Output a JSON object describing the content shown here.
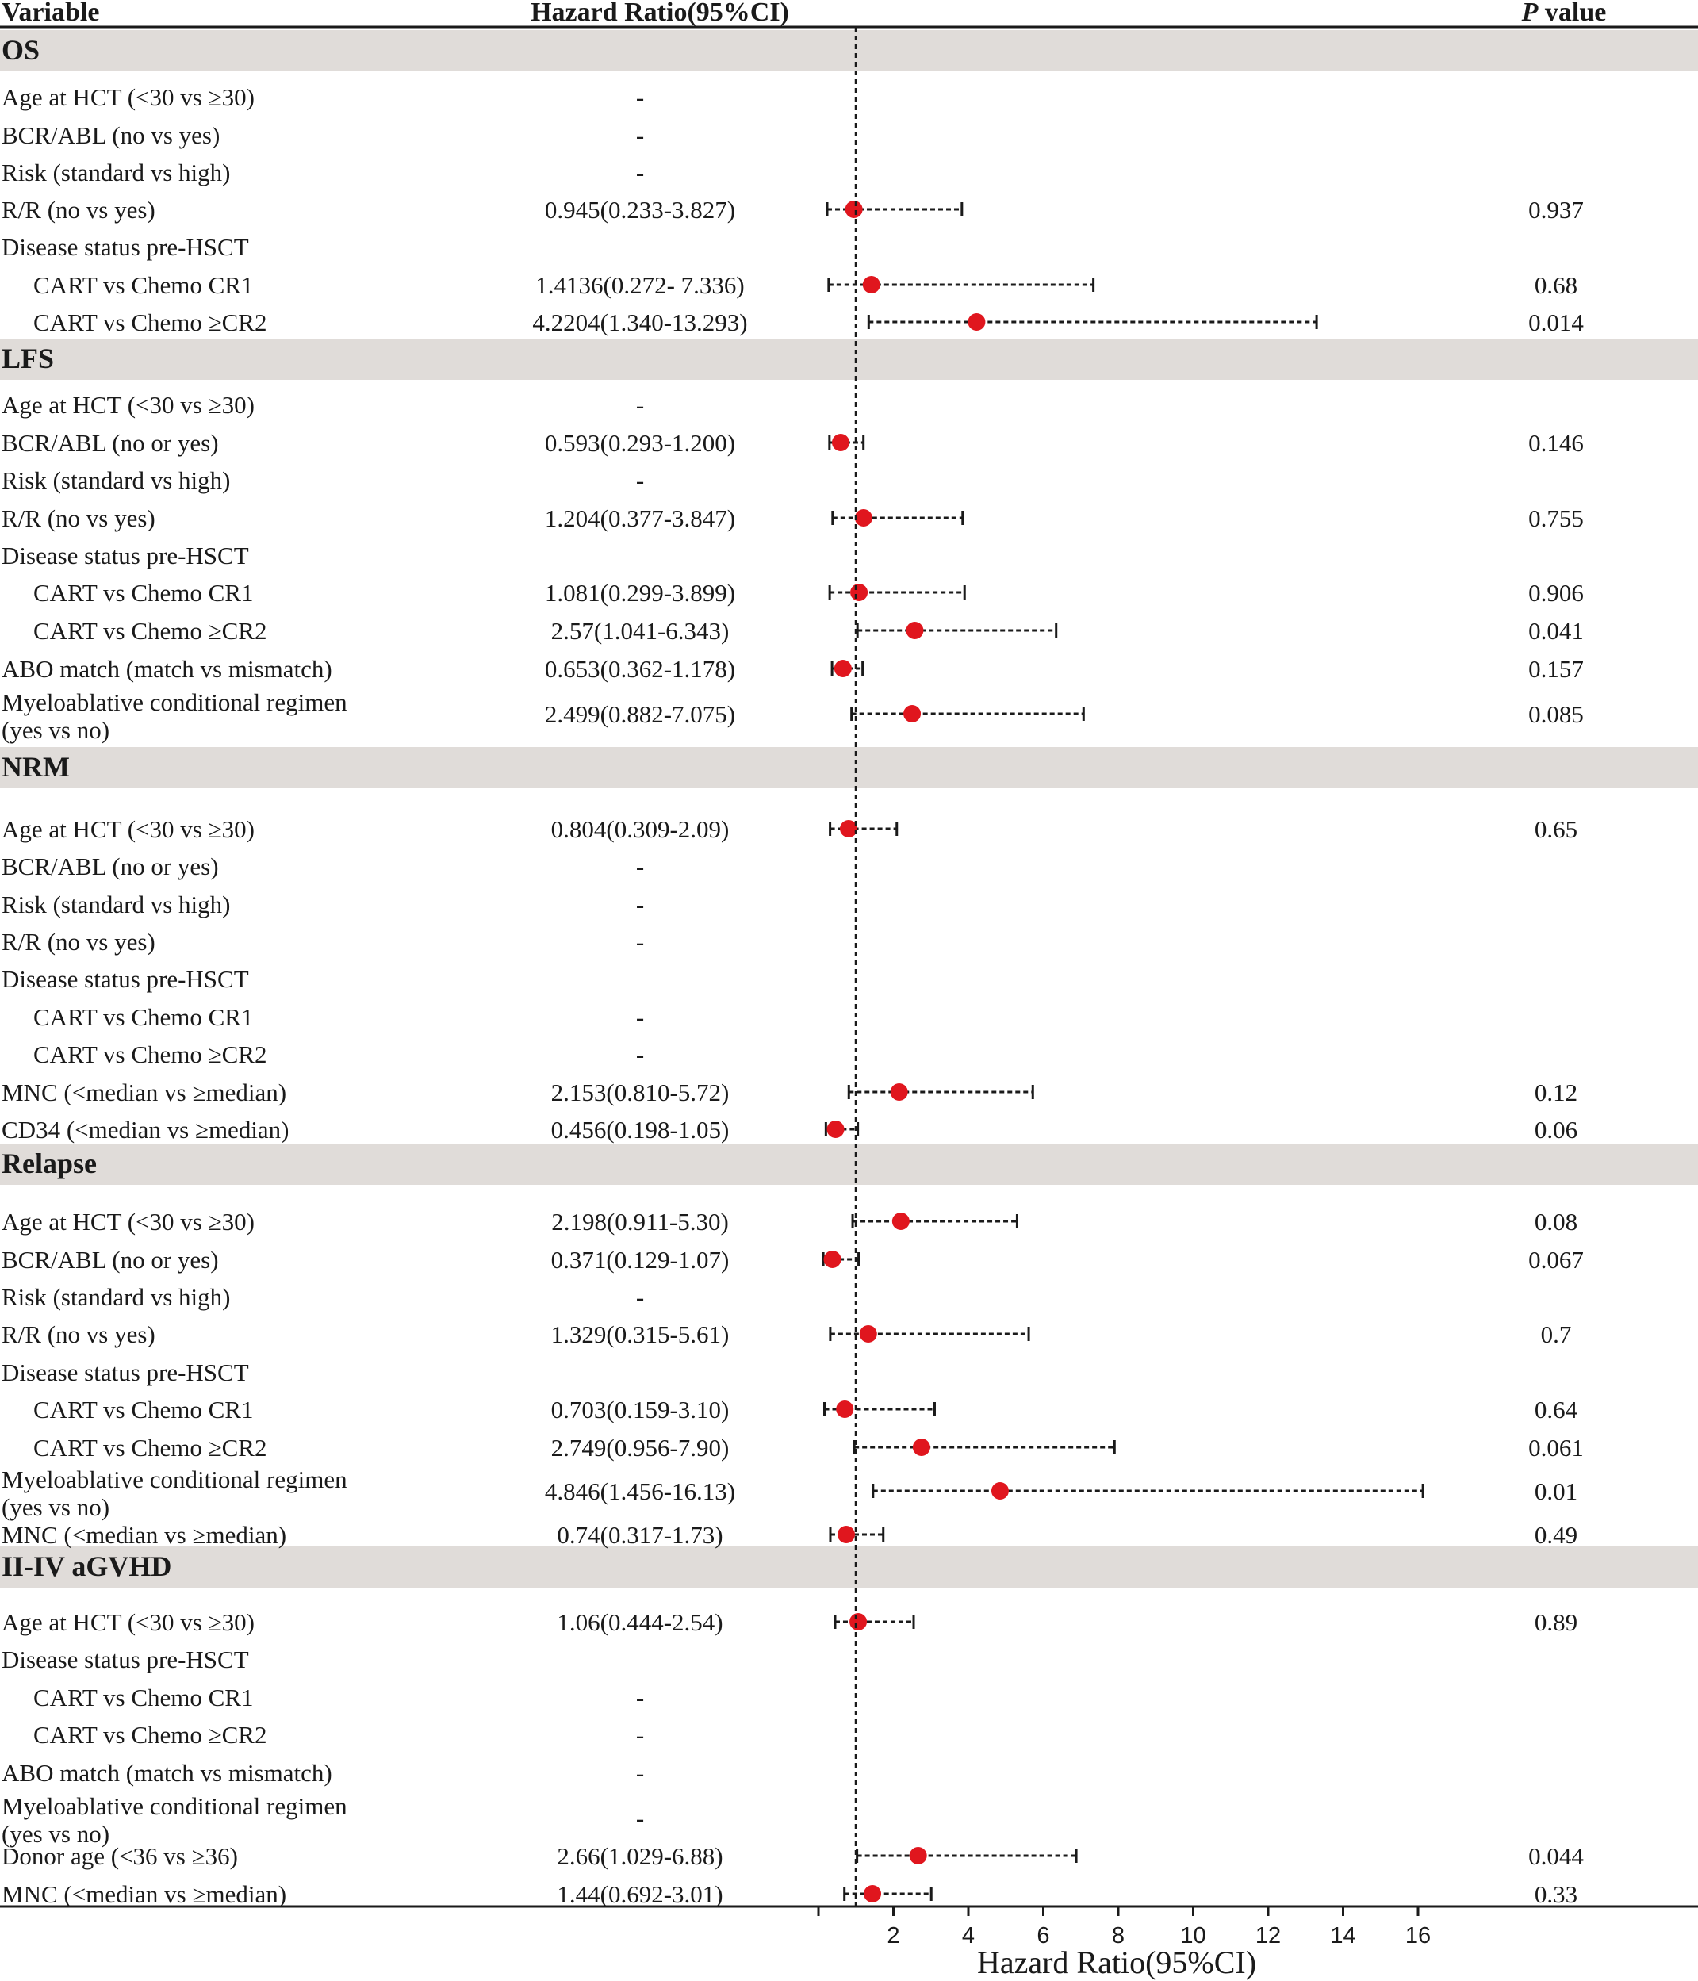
{
  "headers": {
    "variable": "Variable",
    "hazard_ratio": "Hazard Ratio(95%CI)",
    "p_italic": "P",
    "p_rest": " value"
  },
  "colors": {
    "band": "#e0dcd9",
    "point": "#e0161e",
    "ink": "#1a1a1a"
  },
  "chart_data": {
    "type": "forest",
    "title": "",
    "xlabel": "Hazard Ratio(95%CI)",
    "xticks": [
      2,
      4,
      6,
      8,
      10,
      12,
      14,
      16
    ],
    "xlim": [
      -0.2,
      16.5
    ],
    "reference_line": 1,
    "sections": [
      {
        "name": "OS",
        "rows": [
          {
            "label": "Age at HCT (<30 vs ≥30)",
            "hr_text": "-",
            "p": ""
          },
          {
            "label": "BCR/ABL (no vs yes)",
            "hr_text": "-",
            "p": ""
          },
          {
            "label": "Risk (standard vs high)",
            "hr_text": "-",
            "p": ""
          },
          {
            "label": "R/R (no vs yes)",
            "hr_text": "0.945(0.233-3.827)",
            "p": "0.937",
            "hr": 0.945,
            "lo": 0.233,
            "hi": 3.827
          },
          {
            "label": "Disease status pre-HSCT",
            "hr_text": "",
            "p": ""
          },
          {
            "label": "CART vs Chemo CR1",
            "indent": true,
            "hr_text": "1.4136(0.272- 7.336)",
            "p": "0.68",
            "hr": 1.4136,
            "lo": 0.272,
            "hi": 7.336
          },
          {
            "label": "CART vs Chemo ≥CR2",
            "indent": true,
            "hr_text": "4.2204(1.340-13.293)",
            "p": "0.014",
            "hr": 4.2204,
            "lo": 1.34,
            "hi": 13.293
          }
        ]
      },
      {
        "name": "LFS",
        "rows": [
          {
            "label": "Age at HCT (<30 vs ≥30)",
            "hr_text": "-",
            "p": ""
          },
          {
            "label": "BCR/ABL (no or yes)",
            "hr_text": "0.593(0.293-1.200)",
            "p": "0.146",
            "hr": 0.593,
            "lo": 0.293,
            "hi": 1.2
          },
          {
            "label": "Risk (standard vs high)",
            "hr_text": "-",
            "p": ""
          },
          {
            "label": "R/R (no vs yes)",
            "hr_text": "1.204(0.377-3.847)",
            "p": "0.755",
            "hr": 1.204,
            "lo": 0.377,
            "hi": 3.847
          },
          {
            "label": "Disease status pre-HSCT",
            "hr_text": "",
            "p": ""
          },
          {
            "label": "CART vs Chemo CR1",
            "indent": true,
            "hr_text": "1.081(0.299-3.899)",
            "p": "0.906",
            "hr": 1.081,
            "lo": 0.299,
            "hi": 3.899
          },
          {
            "label": "CART vs Chemo ≥CR2",
            "indent": true,
            "hr_text": "2.57(1.041-6.343)",
            "p": "0.041",
            "hr": 2.57,
            "lo": 1.041,
            "hi": 6.343
          },
          {
            "label": "ABO match (match vs mismatch)",
            "hr_text": "0.653(0.362-1.178)",
            "p": "0.157",
            "hr": 0.653,
            "lo": 0.362,
            "hi": 1.178
          },
          {
            "label": "Myeloablative conditional regimen",
            "label2": "(yes vs no)",
            "hr_text": "2.499(0.882-7.075)",
            "p": "0.085",
            "hr": 2.499,
            "lo": 0.882,
            "hi": 7.075
          }
        ]
      },
      {
        "name": "NRM",
        "rows": [
          {
            "label": "Age at HCT (<30 vs ≥30)",
            "hr_text": "0.804(0.309-2.09)",
            "p": "0.65",
            "hr": 0.804,
            "lo": 0.309,
            "hi": 2.09
          },
          {
            "label": "BCR/ABL (no or yes)",
            "hr_text": "-",
            "p": ""
          },
          {
            "label": "Risk (standard vs high)",
            "hr_text": "-",
            "p": ""
          },
          {
            "label": "R/R (no vs yes)",
            "hr_text": "-",
            "p": ""
          },
          {
            "label": "Disease status pre-HSCT",
            "hr_text": "",
            "p": ""
          },
          {
            "label": "CART vs Chemo CR1",
            "indent": true,
            "hr_text": "-",
            "p": ""
          },
          {
            "label": "CART vs Chemo ≥CR2",
            "indent": true,
            "hr_text": "-",
            "p": ""
          },
          {
            "label": "MNC (<median vs ≥median)",
            "hr_text": "2.153(0.810-5.72)",
            "p": "0.12",
            "hr": 2.153,
            "lo": 0.81,
            "hi": 5.72
          },
          {
            "label": "CD34 (<median vs ≥median)",
            "hr_text": "0.456(0.198-1.05)",
            "p": "0.06",
            "hr": 0.456,
            "lo": 0.198,
            "hi": 1.05
          }
        ]
      },
      {
        "name": "Relapse",
        "rows": [
          {
            "label": "Age at HCT (<30 vs ≥30)",
            "hr_text": "2.198(0.911-5.30)",
            "p": "0.08",
            "hr": 2.198,
            "lo": 0.911,
            "hi": 5.3
          },
          {
            "label": "BCR/ABL (no or yes)",
            "hr_text": "0.371(0.129-1.07)",
            "p": "0.067",
            "hr": 0.371,
            "lo": 0.129,
            "hi": 1.07
          },
          {
            "label": "Risk (standard vs high)",
            "hr_text": "-",
            "p": ""
          },
          {
            "label": "R/R (no vs yes)",
            "hr_text": "1.329(0.315-5.61)",
            "p": "0.7",
            "hr": 1.329,
            "lo": 0.315,
            "hi": 5.61
          },
          {
            "label": "Disease status pre-HSCT",
            "hr_text": "",
            "p": ""
          },
          {
            "label": "CART vs Chemo CR1",
            "indent": true,
            "hr_text": "0.703(0.159-3.10)",
            "p": "0.64",
            "hr": 0.703,
            "lo": 0.159,
            "hi": 3.1
          },
          {
            "label": "CART vs Chemo ≥CR2",
            "indent": true,
            "hr_text": "2.749(0.956-7.90)",
            "p": "0.061",
            "hr": 2.749,
            "lo": 0.956,
            "hi": 7.9
          },
          {
            "label": "Myeloablative conditional regimen",
            "label2": "(yes vs no)",
            "hr_text": "4.846(1.456-16.13)",
            "p": "0.01",
            "hr": 4.846,
            "lo": 1.456,
            "hi": 16.13
          },
          {
            "label": "MNC (<median vs ≥median)",
            "hr_text": "0.74(0.317-1.73)",
            "p": "0.49",
            "hr": 0.74,
            "lo": 0.317,
            "hi": 1.73
          }
        ]
      },
      {
        "name": "II-IV aGVHD",
        "rows": [
          {
            "label": "Age at HCT (<30 vs ≥30)",
            "hr_text": "1.06(0.444-2.54)",
            "p": "0.89",
            "hr": 1.06,
            "lo": 0.444,
            "hi": 2.54
          },
          {
            "label": "Disease status pre-HSCT",
            "hr_text": "",
            "p": ""
          },
          {
            "label": "CART vs Chemo CR1",
            "indent": true,
            "hr_text": "-",
            "p": ""
          },
          {
            "label": "CART vs Chemo ≥CR2",
            "indent": true,
            "hr_text": "-",
            "p": ""
          },
          {
            "label": "ABO match (match vs mismatch)",
            "hr_text": "-",
            "p": ""
          },
          {
            "label": "Myeloablative conditional regimen",
            "label2": "(yes vs no)",
            "hr_text": "-",
            "p": ""
          },
          {
            "label": "Donor age (<36 vs ≥36)",
            "hr_text": "2.66(1.029-6.88)",
            "p": "0.044",
            "hr": 2.66,
            "lo": 1.029,
            "hi": 6.88
          },
          {
            "label": "MNC (<median vs ≥median)",
            "hr_text": "1.44(0.692-3.01)",
            "p": "0.33",
            "hr": 1.44,
            "lo": 0.692,
            "hi": 3.01
          }
        ]
      }
    ]
  }
}
